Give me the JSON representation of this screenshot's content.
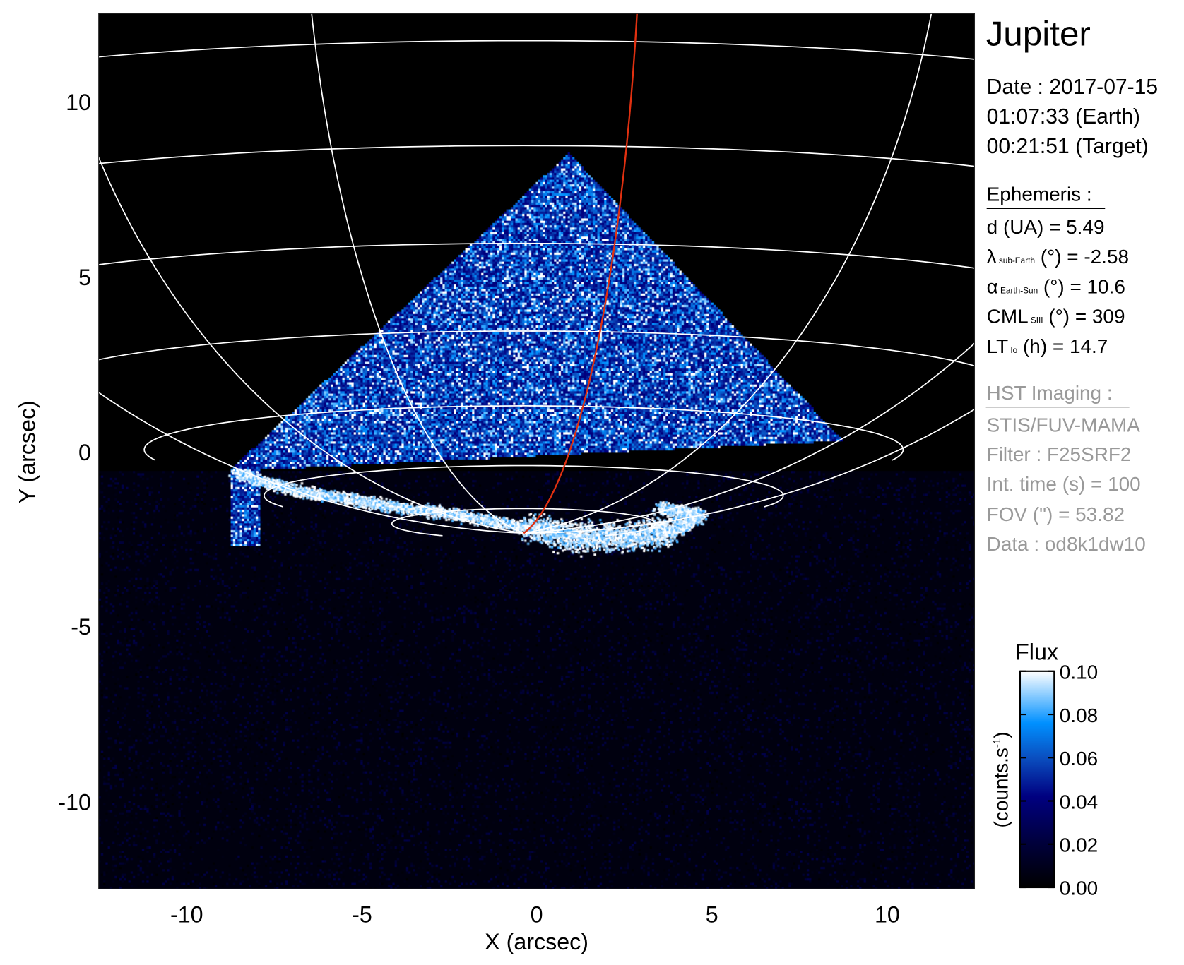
{
  "chart_data": {
    "type": "heatmap",
    "title": "Jupiter",
    "xlabel": "X (arcsec)",
    "ylabel": "Y (arcsec)",
    "xlim": [
      -12.5,
      12.5
    ],
    "ylim": [
      -12.5,
      12.5
    ],
    "xticks": [
      -10,
      -5,
      0,
      5,
      10
    ],
    "yticks": [
      -10,
      -5,
      0,
      5,
      10
    ],
    "xtick_labels": [
      "-10",
      "-5",
      "0",
      "5",
      "10"
    ],
    "ytick_labels": [
      "-10",
      "-5",
      "0",
      "5",
      "10"
    ],
    "grid": "planetographic latitude/longitude grid (white), one meridian highlighted",
    "highlight_color": "#e03010",
    "colorbar": {
      "title": "Flux",
      "label": "(counts.s",
      "label_sup": "-1",
      "label_end": ")",
      "range": [
        0.0,
        0.1
      ],
      "ticks": [
        0.0,
        0.02,
        0.04,
        0.06,
        0.08,
        0.1
      ],
      "tick_labels": [
        "0.00",
        "0.02",
        "0.04",
        "0.06",
        "0.08",
        "0.10"
      ],
      "colors": [
        "#000000",
        "#00003a",
        "#000080",
        "#0a4fc0",
        "#0090ff",
        "#ffffff"
      ]
    }
  },
  "info": {
    "date": "Date : 2017-07-15",
    "earth_time": "01:07:33 (Earth)",
    "target_time": "00:21:51 (Target)"
  },
  "ephemeris": {
    "header": "Ephemeris :",
    "rows": [
      {
        "sym": "d (UA)",
        "sub": "",
        "rest": "    = 5.49"
      },
      {
        "sym": "λ",
        "sub": "sub-Earth",
        "rest": " (°) = -2.58"
      },
      {
        "sym": "α",
        "sub": "Earth-Sun",
        "rest": " (°) = 10.6"
      },
      {
        "sym": "CML",
        "sub": "SIII",
        "rest": " (°) = 309"
      },
      {
        "sym": "LT",
        "sub": "Io",
        "rest": " (h) = 14.7"
      }
    ]
  },
  "hst": {
    "header": "HST Imaging :",
    "instrument": "STIS/FUV-MAMA",
    "filter": "Filter : F25SRF2",
    "int_time": "Int. time (s) = 100",
    "fov": "FOV (\") = 53.82",
    "data": "Data : od8k1dw10"
  }
}
